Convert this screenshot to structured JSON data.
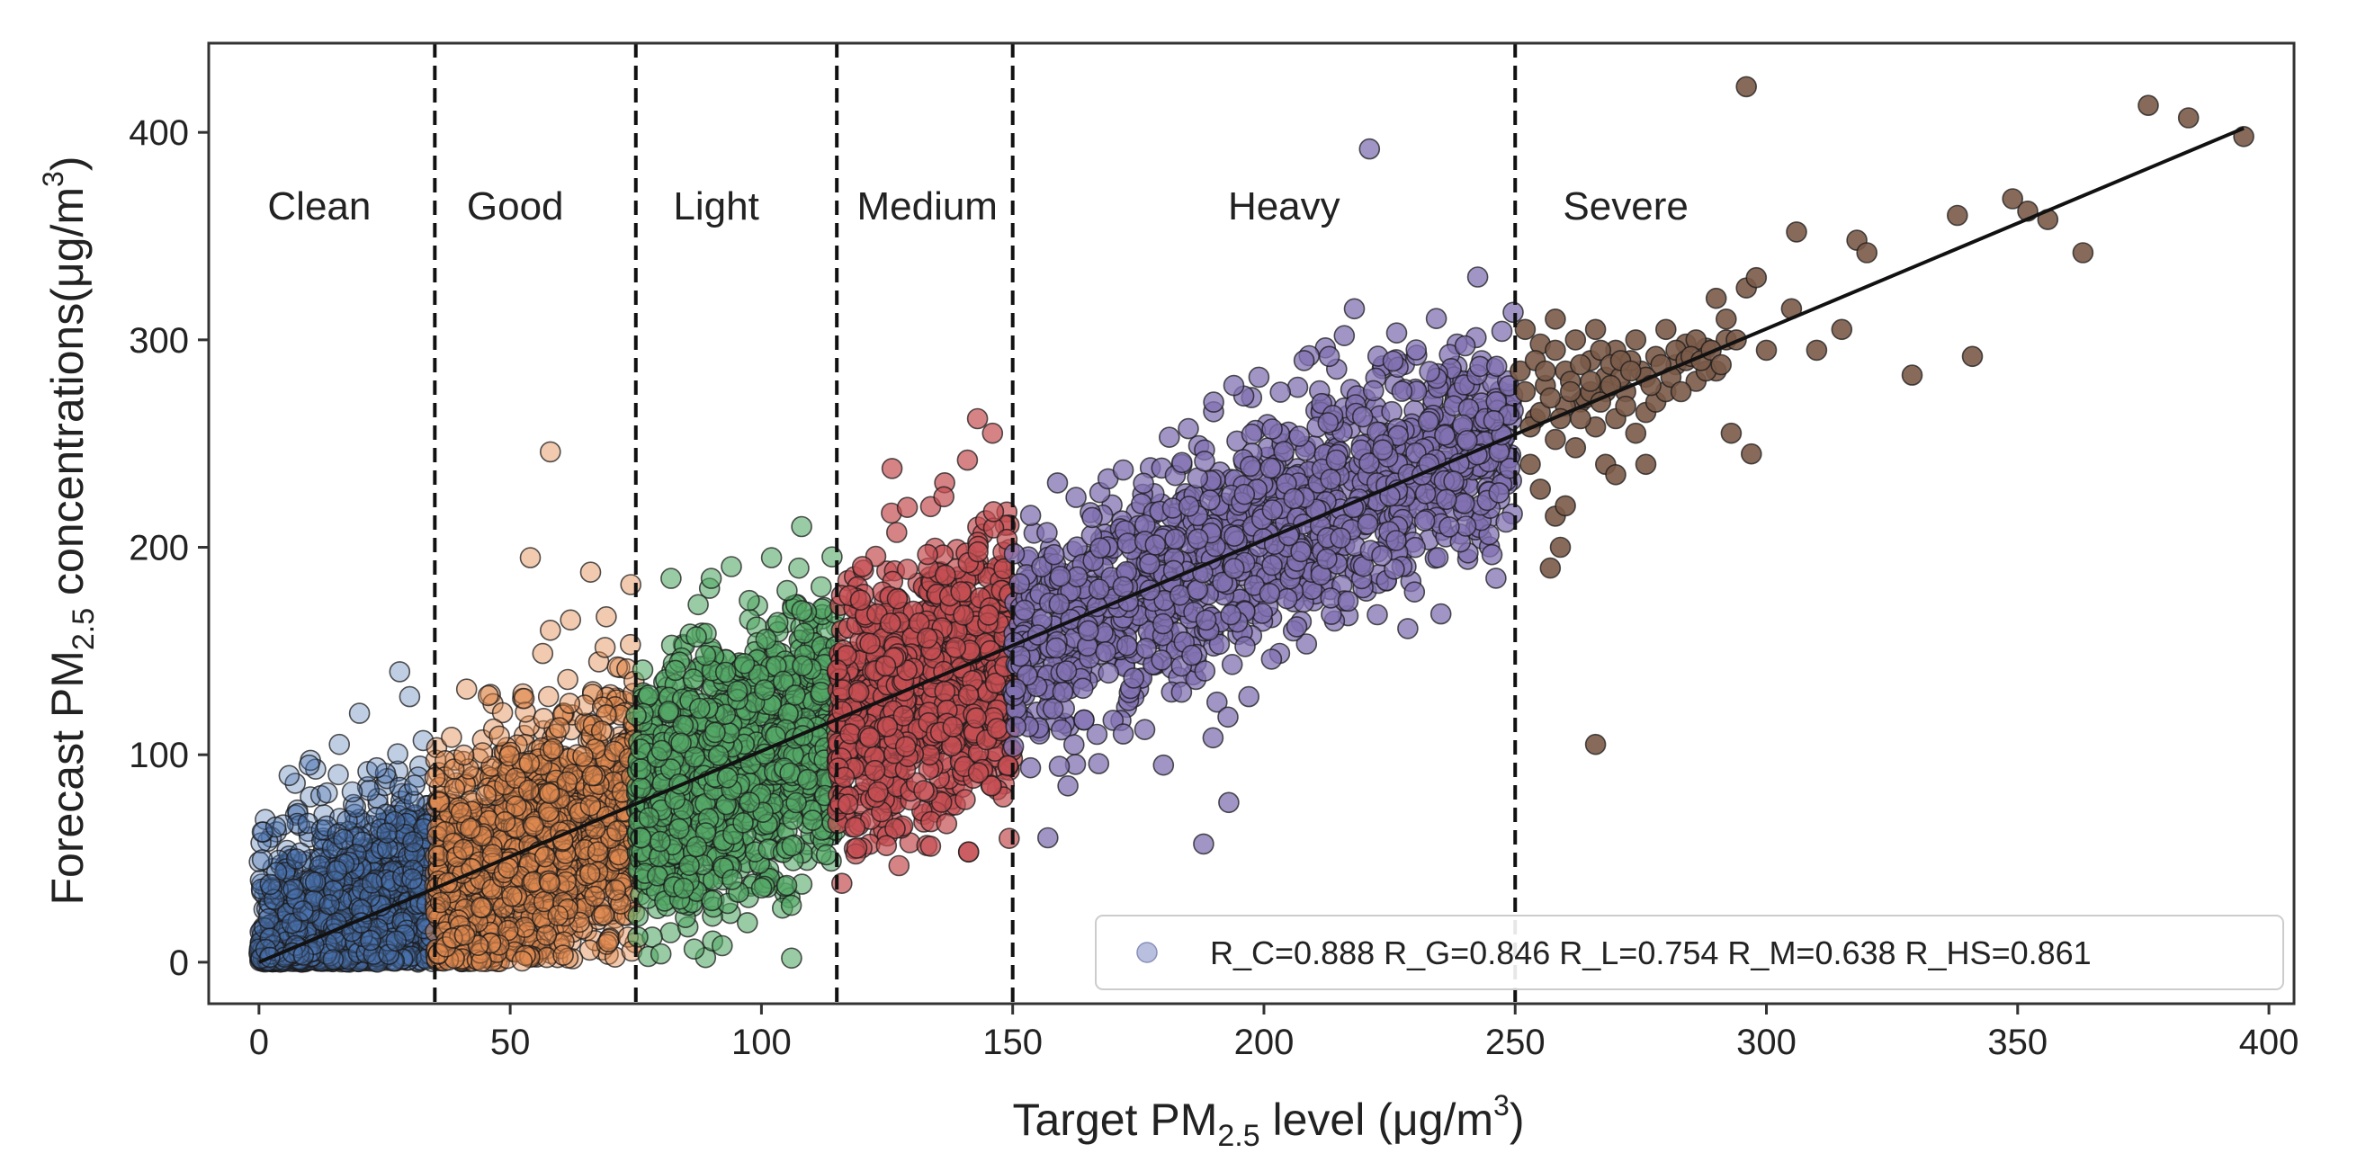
{
  "chart_data": {
    "type": "scatter",
    "title": "",
    "xlabel": {
      "prefix": "Target PM",
      "sub": "2.5",
      "middle": " level (μg/m",
      "sup": "3",
      "suffix": ")"
    },
    "ylabel": {
      "prefix": "Forecast PM",
      "sub": "2.5",
      "middle": " concentrations(μg/m",
      "sup": "3",
      "suffix": ")"
    },
    "xlim": [
      -10,
      405
    ],
    "ylim": [
      -20,
      443
    ],
    "xticks": [
      0,
      50,
      100,
      150,
      200,
      250,
      300,
      350,
      400
    ],
    "yticks": [
      0,
      100,
      200,
      300,
      400
    ],
    "thresholds": [
      35,
      75,
      115,
      150,
      250
    ],
    "categories": [
      {
        "name": "Clean",
        "x_range": [
          0,
          35
        ],
        "label_x": 12,
        "label_y": 358,
        "color": "#4a72b0",
        "slope": 0.95,
        "spread": 28,
        "count": 1400,
        "opacity": 0.35
      },
      {
        "name": "Good",
        "x_range": [
          35,
          75
        ],
        "label_x": 51,
        "label_y": 358,
        "color": "#e08a50",
        "slope": 1.0,
        "spread": 30,
        "count": 1500,
        "opacity": 0.45
      },
      {
        "name": "Light",
        "x_range": [
          75,
          115
        ],
        "label_x": 91,
        "label_y": 358,
        "color": "#55a868",
        "slope": 1.0,
        "spread": 30,
        "count": 1400,
        "opacity": 0.6
      },
      {
        "name": "Medium",
        "x_range": [
          115,
          150
        ],
        "label_x": 133,
        "label_y": 358,
        "color": "#c44e52",
        "slope": 1.0,
        "spread": 30,
        "count": 1100,
        "opacity": 0.7
      },
      {
        "name": "Heavy",
        "x_range": [
          150,
          250
        ],
        "label_x": 204,
        "label_y": 358,
        "color": "#8172b2",
        "slope": 1.02,
        "spread": 28,
        "count": 1300,
        "opacity": 0.75
      },
      {
        "name": "Severe",
        "x_range": [
          250,
          395
        ],
        "label_x": 272,
        "label_y": 358,
        "color": "#7a5a48",
        "slope": 1.02,
        "spread": 18,
        "count": 0,
        "opacity": 0.9
      }
    ],
    "severe_points": [
      [
        252,
        305
      ],
      [
        255,
        298
      ],
      [
        258,
        310
      ],
      [
        260,
        285
      ],
      [
        262,
        300
      ],
      [
        263,
        270
      ],
      [
        265,
        290
      ],
      [
        266,
        305
      ],
      [
        268,
        282
      ],
      [
        270,
        295
      ],
      [
        272,
        275
      ],
      [
        274,
        300
      ],
      [
        275,
        285
      ],
      [
        276,
        265
      ],
      [
        278,
        292
      ],
      [
        280,
        305
      ],
      [
        282,
        288
      ],
      [
        284,
        298
      ],
      [
        286,
        280
      ],
      [
        288,
        296
      ],
      [
        290,
        285
      ],
      [
        292,
        300
      ],
      [
        254,
        262
      ],
      [
        256,
        278
      ],
      [
        258,
        252
      ],
      [
        260,
        268
      ],
      [
        262,
        248
      ],
      [
        264,
        272
      ],
      [
        266,
        258
      ],
      [
        268,
        275
      ],
      [
        270,
        262
      ],
      [
        272,
        268
      ],
      [
        274,
        255
      ],
      [
        276,
        282
      ],
      [
        278,
        270
      ],
      [
        280,
        275
      ],
      [
        282,
        295
      ],
      [
        284,
        290
      ],
      [
        286,
        300
      ],
      [
        288,
        285
      ],
      [
        253,
        240
      ],
      [
        255,
        228
      ],
      [
        258,
        215
      ],
      [
        260,
        220
      ],
      [
        257,
        190
      ],
      [
        259,
        200
      ],
      [
        266,
        105
      ],
      [
        268,
        240
      ],
      [
        270,
        235
      ],
      [
        276,
        240
      ],
      [
        290,
        320
      ],
      [
        292,
        310
      ],
      [
        294,
        300
      ],
      [
        296,
        325
      ],
      [
        298,
        330
      ],
      [
        293,
        255
      ],
      [
        297,
        245
      ],
      [
        300,
        295
      ],
      [
        305,
        315
      ],
      [
        306,
        352
      ],
      [
        310,
        295
      ],
      [
        315,
        305
      ],
      [
        318,
        348
      ],
      [
        320,
        342
      ],
      [
        329,
        283
      ],
      [
        338,
        360
      ],
      [
        341,
        292
      ],
      [
        349,
        368
      ],
      [
        352,
        362
      ],
      [
        356,
        358
      ],
      [
        363,
        342
      ],
      [
        376,
        413
      ],
      [
        384,
        407
      ],
      [
        395,
        398
      ],
      [
        296,
        422
      ],
      [
        251,
        285
      ],
      [
        252,
        275
      ],
      [
        254,
        290
      ],
      [
        256,
        285
      ],
      [
        258,
        295
      ],
      [
        261,
        280
      ],
      [
        263,
        288
      ],
      [
        265,
        275
      ],
      [
        267,
        295
      ],
      [
        269,
        288
      ],
      [
        271,
        282
      ],
      [
        273,
        290
      ],
      [
        277,
        278
      ],
      [
        279,
        288
      ],
      [
        281,
        282
      ],
      [
        283,
        275
      ],
      [
        285,
        292
      ],
      [
        287,
        290
      ],
      [
        289,
        295
      ],
      [
        291,
        288
      ],
      [
        253,
        258
      ],
      [
        255,
        265
      ],
      [
        257,
        272
      ],
      [
        259,
        262
      ],
      [
        261,
        275
      ],
      [
        263,
        262
      ],
      [
        265,
        280
      ],
      [
        267,
        270
      ],
      [
        269,
        278
      ],
      [
        271,
        290
      ],
      [
        273,
        285
      ]
    ],
    "outliers": [
      {
        "cat": "Good",
        "points": [
          [
            58,
            246
          ],
          [
            54,
            195
          ],
          [
            66,
            188
          ],
          [
            62,
            165
          ],
          [
            58,
            160
          ],
          [
            74,
            182
          ]
        ]
      },
      {
        "cat": "Light",
        "points": [
          [
            108,
            210
          ],
          [
            90,
            185
          ],
          [
            82,
            185
          ],
          [
            102,
            195
          ],
          [
            106,
            2
          ],
          [
            80,
            4
          ]
        ]
      },
      {
        "cat": "Medium",
        "points": [
          [
            143,
            262
          ],
          [
            126,
            238
          ],
          [
            141,
            242
          ],
          [
            146,
            255
          ],
          [
            119,
            55
          ],
          [
            116,
            38
          ]
        ]
      },
      {
        "cat": "Heavy",
        "points": [
          [
            221,
            392
          ],
          [
            218,
            315
          ],
          [
            199,
            282
          ],
          [
            194,
            278
          ],
          [
            190,
            270
          ],
          [
            208,
            290
          ],
          [
            213,
            292
          ],
          [
            216,
            302
          ],
          [
            188,
            57
          ],
          [
            193,
            77
          ],
          [
            157,
            60
          ],
          [
            161,
            85
          ],
          [
            180,
            95
          ],
          [
            197,
            128
          ],
          [
            172,
            110
          ]
        ]
      },
      {
        "cat": "Clean",
        "points": [
          [
            28,
            140
          ],
          [
            20,
            120
          ],
          [
            10,
            95
          ],
          [
            16,
            105
          ],
          [
            6,
            90
          ],
          [
            30,
            128
          ]
        ]
      }
    ],
    "fit_line": {
      "x": [
        0,
        395
      ],
      "y": [
        0,
        402
      ]
    },
    "legend": {
      "position": "bottom-right",
      "marker_color": "#b8bfdf",
      "entries": [
        "R_C=0.888",
        "R_G=0.846",
        "R_L=0.754",
        "R_M=0.638",
        "R_HS=0.861"
      ]
    }
  }
}
